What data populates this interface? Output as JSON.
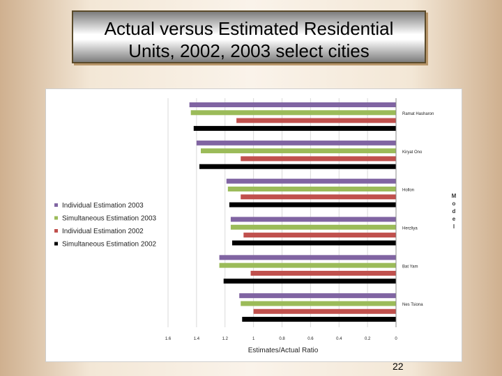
{
  "slide": {
    "title_line1": "Actual versus Estimated Residential",
    "title_line2": "Units, 2002, 2003 select cities",
    "page_number": "22"
  },
  "chart_data": {
    "type": "bar",
    "orientation": "horizontal",
    "x_axis_reversed": true,
    "title": "",
    "xlabel": "Estimates/Actual Ratio",
    "ylabel": "",
    "vertical_label": "M o d e l",
    "xlim": [
      0,
      1.6
    ],
    "xticks": [
      "1.6",
      "1.4",
      "1.2",
      "1",
      "0.8",
      "0.6",
      "0.4",
      "0.2",
      "0"
    ],
    "categories": [
      "Ramat Hasharon",
      "Kiryat Ono",
      "Hollon",
      "Herzliya",
      "Bat Yam",
      "Nes Tsiona"
    ],
    "series": [
      {
        "name": "Individual Estimation 2003",
        "color": "#8064a2",
        "values": [
          1.45,
          1.4,
          1.19,
          1.16,
          1.24,
          1.1
        ]
      },
      {
        "name": "Simultaneous Estimation 2003",
        "color": "#9bbb59",
        "values": [
          1.44,
          1.37,
          1.18,
          1.16,
          1.24,
          1.09
        ]
      },
      {
        "name": "Individual Estimation 2002",
        "color": "#c0504d",
        "values": [
          1.12,
          1.09,
          1.09,
          1.07,
          1.02,
          1.0
        ]
      },
      {
        "name": "Simultaneous Estimation 2002",
        "color": "#000000",
        "values": [
          1.42,
          1.38,
          1.17,
          1.15,
          1.21,
          1.08
        ]
      }
    ],
    "legend_position": "left"
  }
}
